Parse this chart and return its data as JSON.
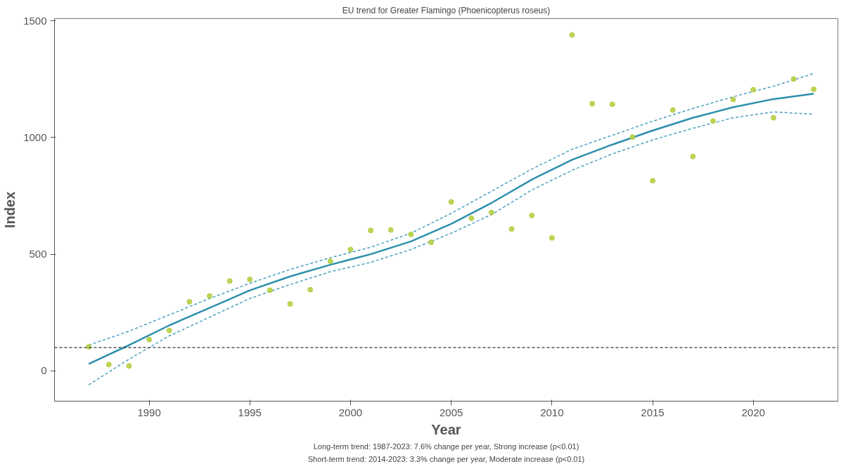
{
  "chart_data": {
    "type": "scatter",
    "title": "EU trend for Greater Flamingo (Phoenicopterus roseus)",
    "xlabel": "Year",
    "ylabel": "Index",
    "x": [
      1987,
      1988,
      1989,
      1990,
      1991,
      1992,
      1993,
      1994,
      1995,
      1996,
      1997,
      1998,
      1999,
      2000,
      2001,
      2002,
      2003,
      2004,
      2005,
      2006,
      2007,
      2008,
      2009,
      2010,
      2011,
      2012,
      2013,
      2014,
      2015,
      2016,
      2017,
      2018,
      2019,
      2020,
      2021,
      2022,
      2023
    ],
    "series": [
      {
        "color": "#b5cf45",
        "marker": "circle",
        "values": [
          103,
          27,
          21,
          134,
          173,
          296,
          321,
          385,
          392,
          346,
          287,
          348,
          470,
          520,
          602,
          604,
          585,
          551,
          724,
          654,
          679,
          608,
          666,
          570,
          1440,
          1145,
          1143,
          1002,
          815,
          1118,
          919,
          1071,
          1163,
          1205,
          1085,
          1251,
          1207
        ]
      },
      {
        "type": "line",
        "color": "#2b8fac",
        "line_style": "solid",
        "x": [
          1987,
          1989,
          1991,
          1993,
          1995,
          1997,
          1999,
          2001,
          2003,
          2005,
          2007,
          2009,
          2011,
          2013,
          2015,
          2017,
          2019,
          2021,
          2023
        ],
        "values": [
          30,
          110,
          195,
          270,
          345,
          405,
          455,
          500,
          555,
          630,
          720,
          820,
          905,
          970,
          1030,
          1085,
          1130,
          1165,
          1188
        ]
      },
      {
        "type": "line",
        "color": "#4a9fc0",
        "line_style": "dashed",
        "x": [
          1987,
          1989,
          1991,
          1993,
          1995,
          1997,
          1999,
          2001,
          2003,
          2005,
          2007,
          2009,
          2011,
          2013,
          2015,
          2017,
          2019,
          2021,
          2023
        ],
        "values": [
          110,
          170,
          240,
          310,
          375,
          435,
          485,
          530,
          590,
          675,
          770,
          865,
          950,
          1010,
          1070,
          1125,
          1175,
          1220,
          1275
        ]
      },
      {
        "type": "line",
        "color": "#4a9fc0",
        "line_style": "dashed",
        "x": [
          1987,
          1989,
          1991,
          1993,
          1995,
          1997,
          1999,
          2001,
          2003,
          2005,
          2007,
          2009,
          2011,
          2013,
          2015,
          2017,
          2019,
          2021,
          2023
        ],
        "values": [
          -60,
          50,
          150,
          230,
          310,
          370,
          425,
          465,
          520,
          590,
          670,
          775,
          860,
          930,
          990,
          1040,
          1085,
          1110,
          1100
        ]
      }
    ],
    "ref_lines": [
      {
        "axis": "y",
        "value": 100,
        "color": "#333333",
        "line_style": "dashed"
      }
    ],
    "xlim": [
      1985.3,
      2024.2
    ],
    "ylim": [
      -130,
      1510
    ],
    "xticks": [
      1990,
      1995,
      2000,
      2005,
      2010,
      2015,
      2020
    ],
    "yticks": [
      0,
      500,
      1000,
      1500
    ],
    "grid": false,
    "annotations": [
      "Long-term trend: 1987-2023: 7.6% change per year, Strong increase (p<0.01)",
      "Short-term trend: 2014-2023: 3.3% change per year, Moderate increase (p<0.01)"
    ]
  }
}
